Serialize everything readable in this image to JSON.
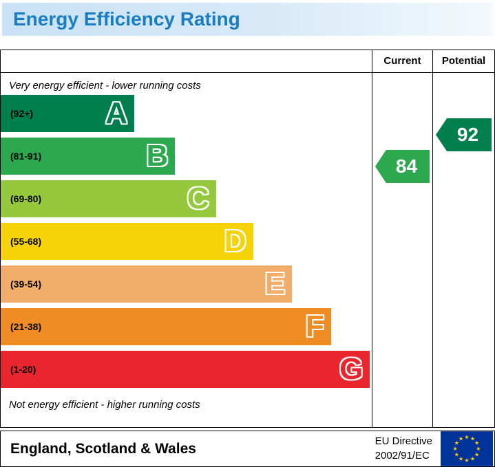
{
  "title": "Energy Efficiency Rating",
  "columns": {
    "current": "Current",
    "potential": "Potential"
  },
  "captions": {
    "top": "Very energy efficient - lower running costs",
    "bottom": "Not energy efficient - higher running costs"
  },
  "bands": [
    {
      "letter": "A",
      "range": "(92+)",
      "color": "#007f4e",
      "width_pct": 36
    },
    {
      "letter": "B",
      "range": "(81-91)",
      "color": "#2ca94f",
      "width_pct": 47
    },
    {
      "letter": "C",
      "range": "(69-80)",
      "color": "#95c83c",
      "width_pct": 58
    },
    {
      "letter": "D",
      "range": "(55-68)",
      "color": "#f5d308",
      "width_pct": 68
    },
    {
      "letter": "E",
      "range": "(39-54)",
      "color": "#f3ad6a",
      "width_pct": 78.5
    },
    {
      "letter": "F",
      "range": "(21-38)",
      "color": "#ef8c23",
      "width_pct": 89
    },
    {
      "letter": "G",
      "range": "(1-20)",
      "color": "#e9262d",
      "width_pct": 99.5
    }
  ],
  "ratings": {
    "current": {
      "value": 84,
      "band": "B",
      "color": "#2ca94f"
    },
    "potential": {
      "value": 92,
      "band": "A",
      "color": "#007f4e"
    }
  },
  "footer": {
    "region": "England, Scotland & Wales",
    "directive_line1": "EU Directive",
    "directive_line2": "2002/91/EC"
  },
  "chart_data": {
    "type": "bar",
    "title": "Energy Efficiency Rating",
    "categories": [
      "A (92+)",
      "B (81-91)",
      "C (69-80)",
      "D (55-68)",
      "E (39-54)",
      "F (21-38)",
      "G (1-20)"
    ],
    "band_colors": [
      "#007f4e",
      "#2ca94f",
      "#95c83c",
      "#f5d308",
      "#f3ad6a",
      "#ef8c23",
      "#e9262d"
    ],
    "bar_widths_pct": [
      36,
      47,
      58,
      68,
      78.5,
      89,
      99.5
    ],
    "current_rating": 84,
    "current_band": "B",
    "potential_rating": 92,
    "potential_band": "A",
    "annotations": [
      "Very energy efficient - lower running costs",
      "Not energy efficient - higher running costs"
    ],
    "region": "England, Scotland & Wales",
    "directive": "EU Directive 2002/91/EC"
  }
}
